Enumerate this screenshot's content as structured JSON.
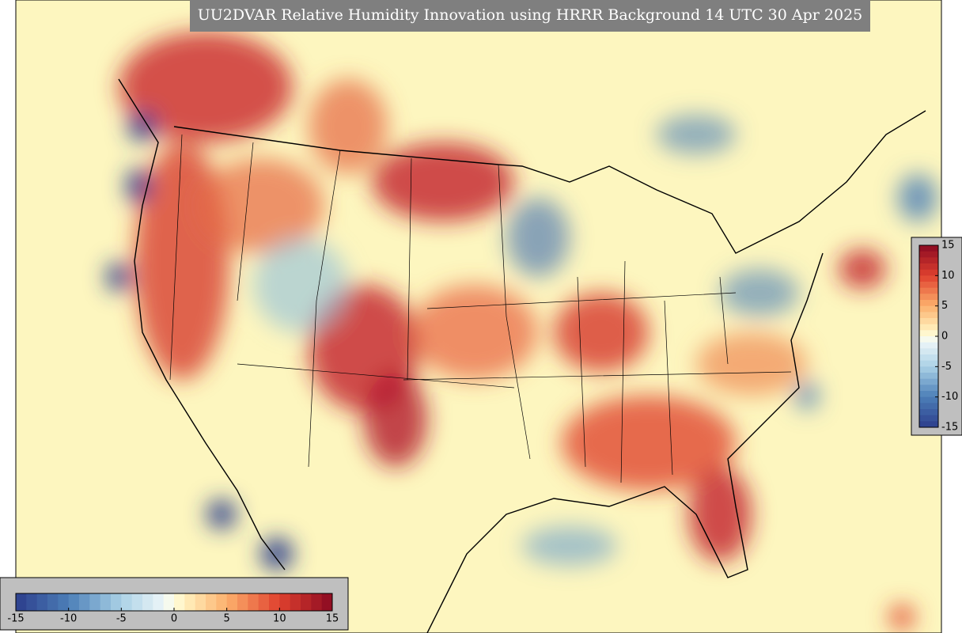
{
  "title": "UU2DVAR Relative Humidity Innovation using HRRR Background 14 UTC 30 Apr 2025",
  "colorbars": {
    "horizontal": {
      "ticks": [
        -15,
        -10,
        -5,
        0,
        5,
        10,
        15
      ]
    },
    "vertical": {
      "ticks": [
        15,
        10,
        5,
        0,
        -5,
        -10,
        -15
      ]
    }
  }
}
